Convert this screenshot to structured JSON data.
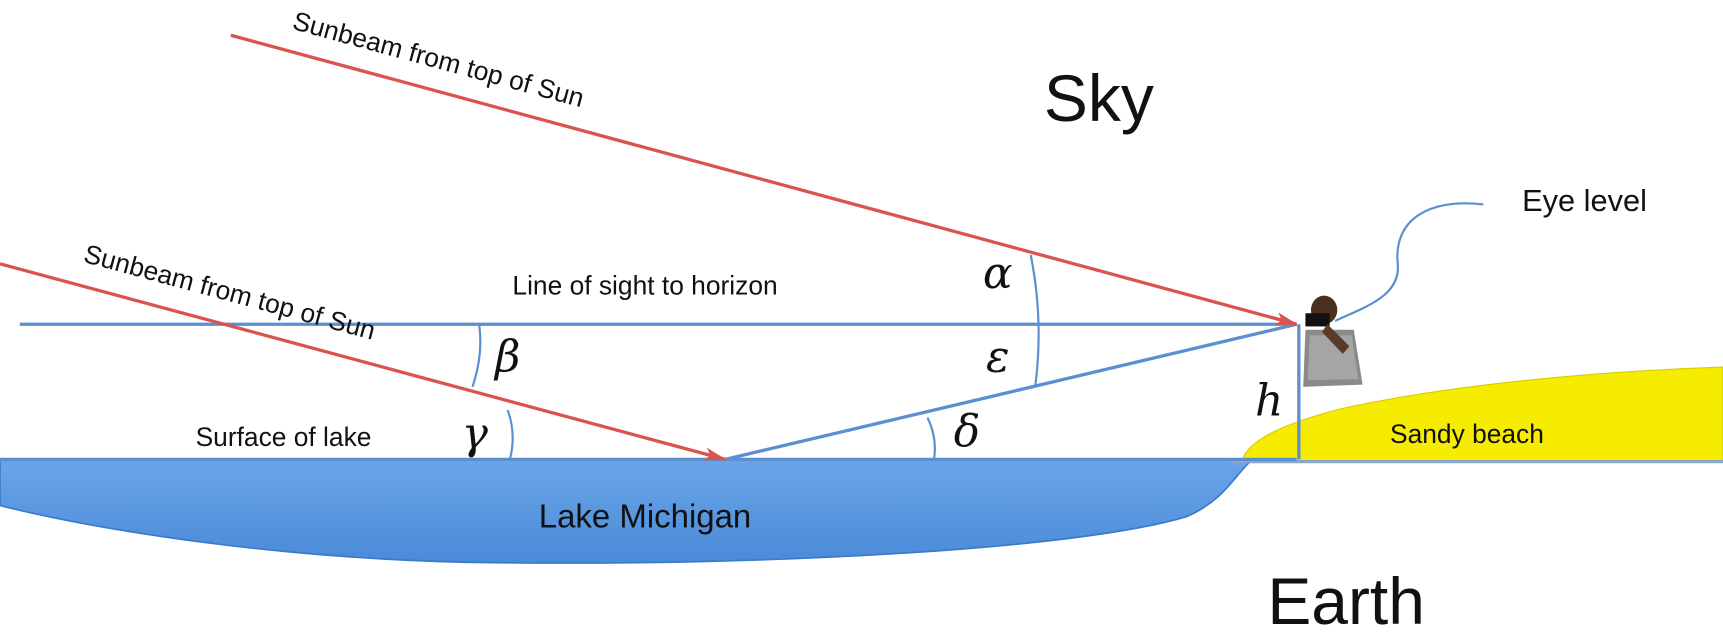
{
  "labels": {
    "sunbeam_upper": "Sunbeam from top of Sun",
    "sunbeam_lower": "Sunbeam from top of Sun",
    "sky": "Sky",
    "eye_level": "Eye level",
    "line_of_sight": "Line of sight to horizon",
    "alpha": "α",
    "epsilon": "ε",
    "beta": "β",
    "gamma": "γ",
    "delta": "δ",
    "h": "h",
    "surface_of_lake": "Surface of lake",
    "sandy_beach": "Sandy beach",
    "lake_michigan": "Lake Michigan",
    "earth": "Earth"
  }
}
